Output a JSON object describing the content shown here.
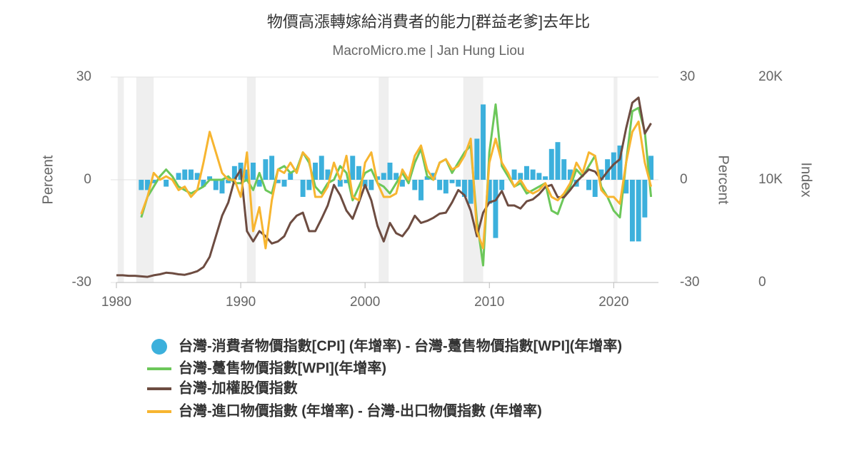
{
  "chart_data": {
    "type": "combo",
    "title": "物價高漲轉嫁給消費者的能力[群益老爹]去年比",
    "subtitle": "MacroMicro.me | Jan Hung Liou",
    "y_label": "Percent",
    "y2_label": "Percent",
    "y3_label": "Index",
    "xlim": [
      1980,
      2023.6
    ],
    "xticks": [
      1980,
      1990,
      2000,
      2010,
      2020
    ],
    "ylim": [
      -30,
      30
    ],
    "yticks": [
      -30,
      0,
      30
    ],
    "y2lim": [
      -30,
      30
    ],
    "y2ticks": [
      -30,
      0,
      30
    ],
    "y3lim": [
      0,
      20000
    ],
    "y3ticks": [
      {
        "value": 0,
        "label": "0"
      },
      {
        "value": 10000,
        "label": "10K"
      },
      {
        "value": 20000,
        "label": "20K"
      }
    ],
    "grid": true,
    "recession_periods": [
      [
        1980.1,
        1980.6
      ],
      [
        1981.6,
        1983.0
      ],
      [
        1990.5,
        1991.2
      ],
      [
        2001.1,
        2001.9
      ],
      [
        2007.9,
        2009.5
      ],
      [
        2020.0,
        2020.3
      ]
    ],
    "x": [
      1980,
      1980.5,
      1981,
      1981.5,
      1982,
      1982.5,
      1983,
      1983.5,
      1984,
      1984.5,
      1985,
      1985.5,
      1986,
      1986.5,
      1987,
      1987.5,
      1988,
      1988.5,
      1989,
      1989.5,
      1990,
      1990.5,
      1991,
      1991.5,
      1992,
      1992.5,
      1993,
      1993.5,
      1994,
      1994.5,
      1995,
      1995.5,
      1996,
      1996.5,
      1997,
      1997.5,
      1998,
      1998.5,
      1999,
      1999.5,
      2000,
      2000.5,
      2001,
      2001.5,
      2002,
      2002.5,
      2003,
      2003.5,
      2004,
      2004.5,
      2005,
      2005.5,
      2006,
      2006.5,
      2007,
      2007.5,
      2008,
      2008.5,
      2009,
      2009.5,
      2010,
      2010.5,
      2011,
      2011.5,
      2012,
      2012.5,
      2013,
      2013.5,
      2014,
      2014.5,
      2015,
      2015.5,
      2016,
      2016.5,
      2017,
      2017.5,
      2018,
      2018.5,
      2019,
      2019.5,
      2020,
      2020.5,
      2021,
      2021.5,
      2022,
      2022.5,
      2023
    ],
    "series": [
      {
        "name": "台灣-消費者物價指數[CPI] (年增率) - 台灣-躉售物價指數[WPI](年增率)",
        "kind": "bar",
        "color": "#3cb0dc",
        "values": [
          null,
          null,
          null,
          null,
          -3,
          -3,
          -1,
          0,
          -2,
          0,
          2,
          3,
          3,
          2,
          -2,
          1,
          -3,
          -4,
          -1,
          4,
          5,
          3,
          5,
          -2,
          6,
          7,
          -1,
          -2,
          2,
          0,
          -5,
          -3,
          5,
          7,
          3,
          0,
          -2,
          -1,
          7,
          4,
          -2,
          -3,
          1,
          2,
          5,
          2,
          -2,
          0,
          -3,
          -6,
          1,
          2,
          -3,
          -4,
          -1,
          -2,
          -5,
          -7,
          12,
          22,
          -7,
          -17,
          -3,
          0,
          3,
          2,
          4,
          3,
          2,
          1,
          9,
          11,
          6,
          3,
          -2,
          0,
          -3,
          -5,
          3,
          6,
          8,
          10,
          -4,
          -18,
          -18,
          -11,
          7
        ]
      },
      {
        "name": "台灣-躉售物價指數[WPI](年增率)",
        "kind": "line",
        "color": "#6cc75a",
        "values": [
          null,
          null,
          null,
          null,
          -11,
          -5,
          -2,
          1,
          3,
          1,
          -2,
          -3,
          -4,
          -3,
          -2,
          0,
          0,
          0,
          1,
          -1,
          -1,
          0,
          -3,
          2,
          -3,
          -4,
          3,
          4,
          2,
          3,
          8,
          5,
          -2,
          -4,
          -1,
          0,
          4,
          2,
          -6,
          -2,
          2,
          3,
          -1,
          -2,
          -4,
          -1,
          2,
          -1,
          5,
          9,
          1,
          0,
          5,
          6,
          2,
          5,
          8,
          10,
          -12,
          -25,
          8,
          22,
          4,
          1,
          -2,
          -1,
          -4,
          -3,
          -2,
          -1,
          -9,
          -10,
          -5,
          -2,
          3,
          1,
          4,
          7,
          -2,
          -5,
          -9,
          -11,
          5,
          20,
          21,
          14,
          -5
        ]
      },
      {
        "name": "台灣-加權股價指數",
        "kind": "line",
        "axis": "y3",
        "color": "#6d4c41",
        "values": [
          700,
          700,
          650,
          650,
          600,
          550,
          700,
          800,
          950,
          900,
          800,
          750,
          900,
          1100,
          1500,
          2500,
          4500,
          6500,
          7800,
          10000,
          11000,
          5000,
          4000,
          5000,
          4500,
          3800,
          4000,
          4500,
          5800,
          6500,
          6800,
          5000,
          5000,
          6200,
          7500,
          9500,
          8500,
          7000,
          6200,
          7800,
          9500,
          8000,
          5500,
          4000,
          5800,
          4800,
          4500,
          5300,
          6500,
          5800,
          6000,
          6300,
          6700,
          6800,
          7800,
          9000,
          8500,
          7000,
          4500,
          6800,
          7800,
          8000,
          8900,
          7500,
          7500,
          7200,
          7900,
          8100,
          8600,
          9300,
          9500,
          8300,
          8300,
          9000,
          9800,
          10400,
          11000,
          10800,
          10000,
          10800,
          11500,
          12000,
          15000,
          17500,
          18000,
          14500,
          15500
        ]
      },
      {
        "name": "台灣-進口物價指數 (年增率) - 台灣-出口物價指數 (年增率)",
        "kind": "line",
        "color": "#f7b530",
        "values": [
          null,
          null,
          null,
          null,
          -10,
          -5,
          2,
          0,
          1,
          0,
          -3,
          -2,
          -5,
          -3,
          5,
          14,
          8,
          2,
          0,
          0,
          -5,
          8,
          -15,
          -8,
          -20,
          -6,
          3,
          2,
          5,
          2,
          8,
          6,
          -5,
          -5,
          -2,
          5,
          0,
          7,
          -5,
          -6,
          5,
          8,
          -1,
          -5,
          -5,
          -4,
          3,
          0,
          7,
          10,
          3,
          0,
          5,
          6,
          3,
          4,
          7,
          12,
          -15,
          -20,
          5,
          12,
          5,
          2,
          -2,
          0,
          -3,
          -4,
          -3,
          -1,
          -5,
          -6,
          -4,
          -1,
          5,
          2,
          8,
          7,
          -3,
          -5,
          -5,
          -7,
          5,
          14,
          17,
          5,
          -2
        ]
      }
    ]
  }
}
